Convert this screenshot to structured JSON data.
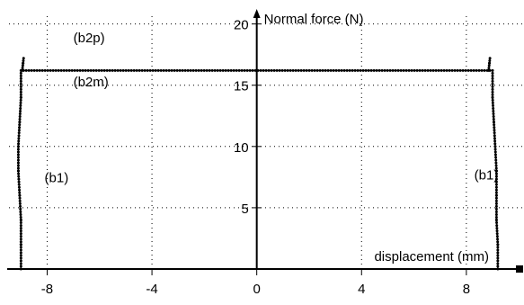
{
  "chart_data": {
    "type": "scatter",
    "title": "",
    "xlabel": "displacement (mm)",
    "ylabel": "Normal force (N)",
    "xlim": [
      -9.8,
      10.2
    ],
    "ylim": [
      0,
      21
    ],
    "x_ticks": [
      -8,
      -4,
      0,
      4,
      8
    ],
    "x_tick_labels": [
      "-8",
      "-4",
      "0",
      "4",
      "8"
    ],
    "y_ticks": [
      5,
      10,
      15,
      20
    ],
    "y_tick_labels": [
      "5",
      "10",
      "15",
      "20"
    ],
    "grid": true,
    "legend": "none",
    "series_color": "#000000",
    "series": [
      {
        "segments": [
          {
            "x": [
              -9.0,
              -9.0,
              -9.0,
              -9.05,
              -9.1,
              -9.1,
              -9.05,
              -9.0,
              -9.0
            ],
            "y": [
              0,
              2,
              4,
              6,
              8,
              10,
              12,
              14,
              16.2
            ]
          },
          {
            "x": [
              -8.95,
              -8.92,
              -8.9
            ],
            "y": [
              16.2,
              16.8,
              17.2
            ]
          },
          {
            "x": [
              -8.9,
              8.9
            ],
            "y": [
              16.2,
              16.2
            ]
          },
          {
            "x": [
              8.85,
              8.88,
              8.9
            ],
            "y": [
              16.2,
              16.8,
              17.2
            ]
          },
          {
            "x": [
              9.0,
              9.0,
              9.05,
              9.1,
              9.15,
              9.15,
              9.15,
              9.2,
              9.2
            ],
            "y": [
              16.2,
              14,
              12,
              10,
              8,
              6,
              4,
              2,
              0
            ]
          }
        ]
      }
    ],
    "annotations": [
      {
        "text": "(b2p)",
        "x": -7.0,
        "y": 18.5
      },
      {
        "text": "(b2m)",
        "x": -7.0,
        "y": 14.9
      },
      {
        "text": "(b1)",
        "x": -8.1,
        "y": 7.1
      },
      {
        "text": "(b1)",
        "x": 8.3,
        "y": 7.3
      }
    ]
  }
}
